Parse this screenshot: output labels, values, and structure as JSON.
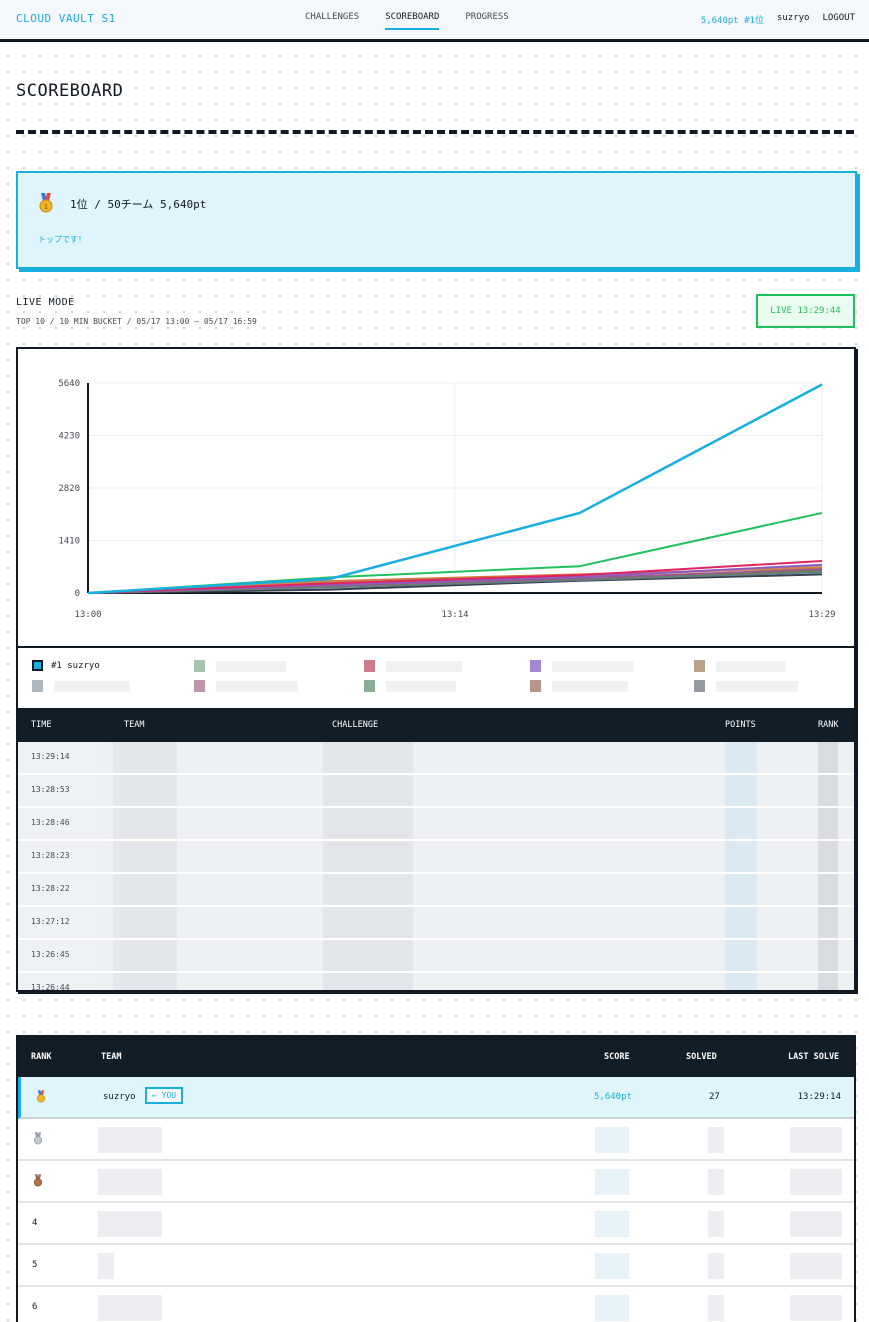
{
  "nav": {
    "brand": "CLOUD VAULT S1",
    "links": [
      "CHALLENGES",
      "SCOREBOARD",
      "PROGRESS"
    ],
    "active": "SCOREBOARD",
    "points_rank": "5,640pt #1位",
    "user": "suzryo",
    "logout": "LOGOUT"
  },
  "page_title": "SCOREBOARD",
  "rank_card": {
    "summary": "1位 / 50チーム 5,640pt",
    "note": "トップです！",
    "medal_icon": "gold-medal-icon"
  },
  "live": {
    "title": "LIVE MODE",
    "subtitle": "TOP 10 / 10 MIN BUCKET / 05/17 13:00 — 05/17 16:59",
    "badge": "LIVE 13:29:44"
  },
  "chart_data": {
    "type": "line",
    "x": [
      "13:00",
      "13:14",
      "13:29"
    ],
    "x_ticks": [
      "13:00",
      "13:14",
      "13:29"
    ],
    "y_ticks": [
      0,
      1410,
      2820,
      4230,
      5640
    ],
    "ylim": [
      0,
      5640
    ],
    "grid": true,
    "legend": "bottom",
    "series": [
      {
        "name": "#1 suzryo",
        "color": "#19aee0",
        "points": [
          [
            0,
            0
          ],
          [
            0.33,
            380
          ],
          [
            0.67,
            2150
          ],
          [
            1.0,
            5600
          ]
        ]
      },
      {
        "color": "#22c05c",
        "points": [
          [
            0,
            0
          ],
          [
            0.33,
            420
          ],
          [
            0.67,
            720
          ],
          [
            1.0,
            2150
          ]
        ]
      },
      {
        "color": "#e0245e",
        "points": [
          [
            0,
            0
          ],
          [
            0.33,
            260
          ],
          [
            0.67,
            480
          ],
          [
            1.0,
            860
          ]
        ]
      },
      {
        "color": "#8e5dc4",
        "points": [
          [
            0,
            0
          ],
          [
            0.33,
            220
          ],
          [
            0.67,
            430
          ],
          [
            1.0,
            760
          ]
        ]
      },
      {
        "color": "#c68a4e",
        "points": [
          [
            0,
            0
          ],
          [
            0.33,
            300
          ],
          [
            0.67,
            460
          ],
          [
            1.0,
            700
          ]
        ]
      },
      {
        "color": "#a0588a",
        "points": [
          [
            0,
            0
          ],
          [
            0.33,
            200
          ],
          [
            0.67,
            400
          ],
          [
            1.0,
            640
          ]
        ]
      },
      {
        "color": "#5a8a5a",
        "points": [
          [
            0,
            0
          ],
          [
            0.33,
            180
          ],
          [
            0.67,
            380
          ],
          [
            1.0,
            600
          ]
        ]
      },
      {
        "color": "#6a7a8c",
        "points": [
          [
            0,
            0
          ],
          [
            0.33,
            150
          ],
          [
            0.67,
            350
          ],
          [
            1.0,
            560
          ]
        ]
      },
      {
        "color": "#333f4a",
        "points": [
          [
            0,
            0
          ],
          [
            0.33,
            90
          ],
          [
            0.67,
            330
          ],
          [
            1.0,
            500
          ]
        ]
      },
      {
        "color": "#d4703a",
        "points": [
          [
            0,
            0
          ],
          [
            0.33,
            320
          ],
          [
            0.67,
            500
          ],
          [
            1.0,
            680
          ]
        ]
      }
    ]
  },
  "legend": {
    "first_label": "#1 suzryo",
    "swatch_colors": [
      "#8fb59a",
      "#c25a70",
      "#8e6ac0",
      "#a88a6a",
      "#9aa6b2",
      "#b07a9a",
      "#6a9a7a",
      "#a87a6a",
      "#7a8288"
    ]
  },
  "feed": {
    "headers": [
      "TIME",
      "TEAM",
      "CHALLENGE",
      "POINTS",
      "RANK"
    ],
    "times": [
      "13:29:14",
      "13:28:53",
      "13:28:46",
      "13:28:23",
      "13:28:22",
      "13:27:12",
      "13:26:45",
      "13:26:44"
    ]
  },
  "board": {
    "headers": [
      "RANK",
      "TEAM",
      "SCORE",
      "SOLVED",
      "LAST SOLVE"
    ],
    "me": {
      "team": "suzryo",
      "you_tag": "← YOU",
      "score": "5,640pt",
      "solved": "27",
      "last_solve": "13:29:14"
    },
    "ranks": [
      "4",
      "5",
      "6"
    ]
  }
}
